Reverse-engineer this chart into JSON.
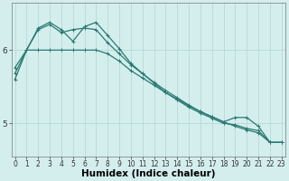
{
  "title": "",
  "xlabel": "Humidex (Indice chaleur)",
  "ylabel": "",
  "background_color": "#d4eeee",
  "grid_color": "#b8d8d8",
  "line_color": "#2a7a72",
  "x_ticks": [
    0,
    1,
    2,
    3,
    4,
    5,
    6,
    7,
    8,
    9,
    10,
    11,
    12,
    13,
    14,
    15,
    16,
    17,
    18,
    19,
    20,
    21,
    22,
    23
  ],
  "y_ticks": [
    5,
    6
  ],
  "ylim": [
    4.55,
    6.65
  ],
  "xlim": [
    -0.3,
    23.3
  ],
  "series": [
    {
      "x": [
        0,
        1,
        2,
        3,
        4,
        5,
        6,
        7,
        8,
        9,
        10,
        11,
        12,
        13,
        14,
        15,
        16,
        17,
        18,
        19,
        20,
        21,
        22,
        23
      ],
      "y": [
        5.76,
        6.0,
        6.0,
        6.0,
        6.0,
        6.0,
        6.0,
        6.0,
        5.95,
        5.85,
        5.72,
        5.62,
        5.52,
        5.42,
        5.33,
        5.24,
        5.16,
        5.09,
        5.02,
        4.96,
        4.91,
        4.87,
        4.74,
        4.74
      ]
    },
    {
      "x": [
        0,
        1,
        2,
        3,
        4,
        5,
        6,
        7,
        8,
        9,
        10,
        11,
        12,
        13,
        14,
        15,
        16,
        17,
        18,
        19,
        20,
        21,
        22,
        23
      ],
      "y": [
        5.68,
        6.0,
        6.28,
        6.35,
        6.24,
        6.28,
        6.3,
        6.28,
        6.1,
        5.95,
        5.8,
        5.68,
        5.56,
        5.45,
        5.35,
        5.25,
        5.16,
        5.09,
        5.02,
        5.08,
        5.08,
        4.96,
        4.74,
        4.74
      ]
    },
    {
      "x": [
        0,
        1,
        2,
        3,
        4,
        5,
        6,
        7,
        8,
        9,
        10,
        11,
        12,
        13,
        14,
        15,
        16,
        17,
        18,
        19,
        20,
        21,
        22,
        23
      ],
      "y": [
        5.6,
        6.0,
        6.3,
        6.38,
        6.28,
        6.12,
        6.32,
        6.38,
        6.2,
        6.02,
        5.82,
        5.68,
        5.55,
        5.42,
        5.32,
        5.22,
        5.14,
        5.07,
        5.0,
        4.98,
        4.93,
        4.9,
        4.74,
        4.74
      ]
    }
  ],
  "tick_fontsize": 5.5,
  "xlabel_fontsize": 7.5,
  "linewidth": 0.9,
  "markersize": 2.5,
  "marker_ew": 0.7
}
